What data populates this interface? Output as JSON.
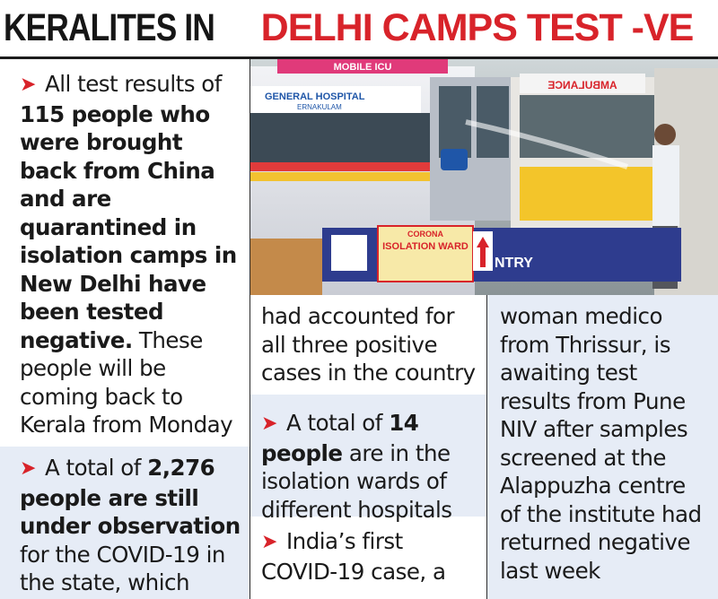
{
  "headline": {
    "black": "KERALITES IN ",
    "red": "DELHI CAMPS TEST -VE"
  },
  "photo": {
    "ambulance_banner": "MOBILE ICU",
    "hospital_text": "GENERAL HOSPITAL",
    "hospital_sub": "ERNAKULAM",
    "ambulance_mirror": "AMBULANCE",
    "sign_corona": "CORONA",
    "sign_isolation": "ISOLATION WARD",
    "sign_entry": "NTRY"
  },
  "left": {
    "p1_intro": "All test results of ",
    "p1_bold": "115 people who were brought back from China and are quarantined in isolation camps in New Delhi have been tested negative.",
    "p1_rest": " These people will be coming back to Kerala from Monday",
    "p2_intro": "A total of ",
    "p2_bold": "2,276 people are still under observation",
    "p2_rest": " for the COVID-19 in the state, which"
  },
  "middle": {
    "p1": "had accounted for all three positive cases in the country",
    "p2_intro": "A total of ",
    "p2_bold": "14 people",
    "p2_rest": " are in the isolation wards of different hospitals",
    "p3": "India’s first COVID-19 case, a"
  },
  "right": {
    "p1": "woman medico from Thrissur, is awaiting test results from Pune NIV after samples screened at the Alappuzha centre of the institute had returned negative last week"
  },
  "colors": {
    "accent_red": "#d8232a",
    "panel_blue": "#e6ecf6"
  }
}
